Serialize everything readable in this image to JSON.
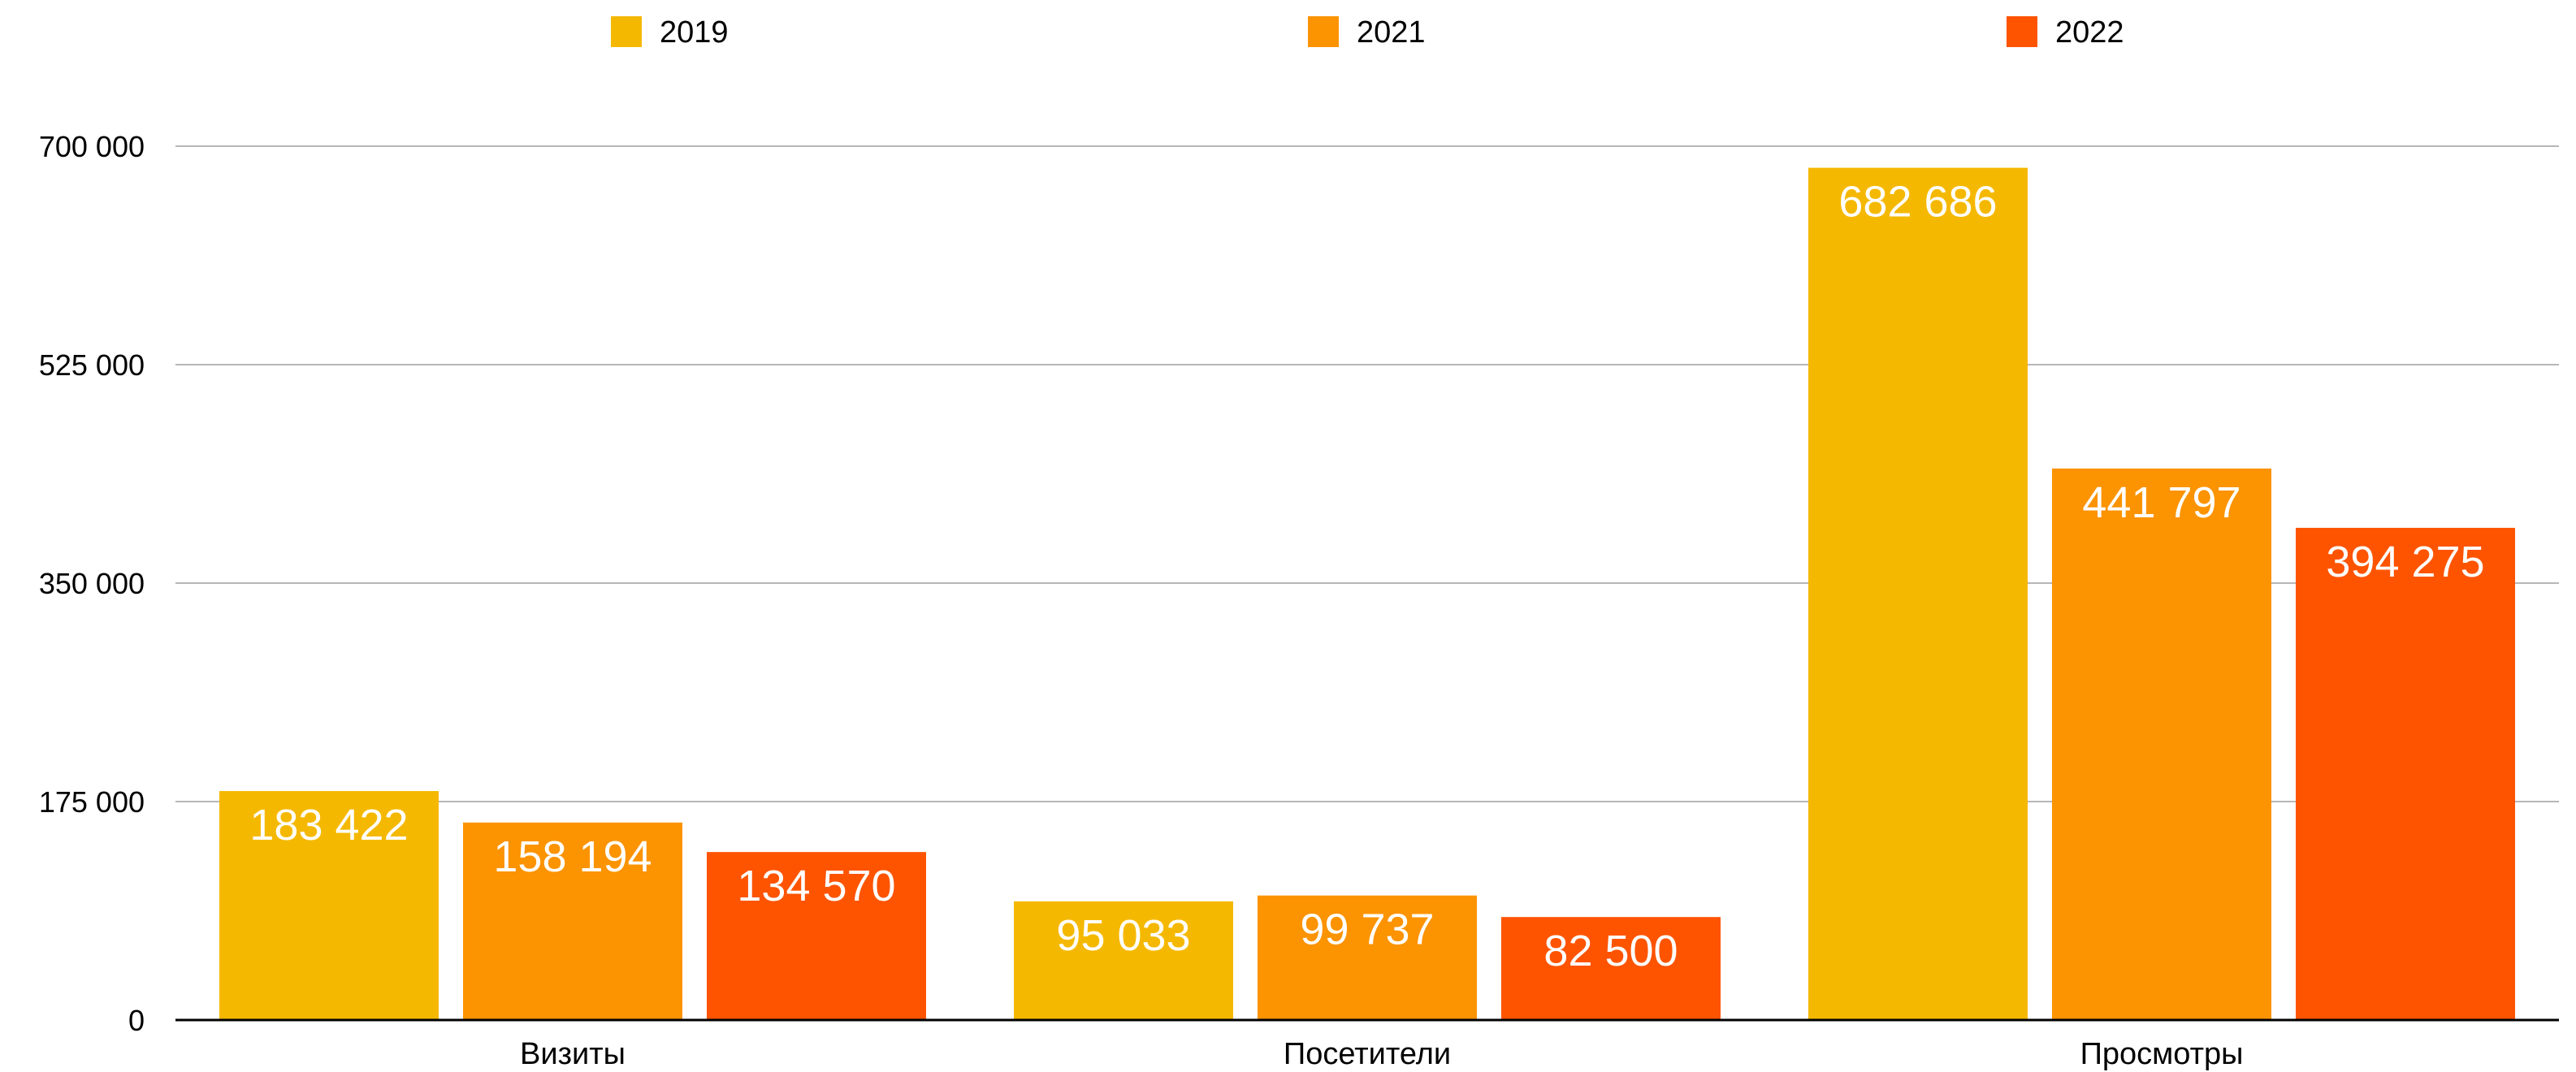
{
  "chart_data": {
    "type": "bar",
    "categories": [
      "Визиты",
      "Посетители",
      "Просмотры"
    ],
    "series": [
      {
        "name": "2019",
        "color": "#f5b800",
        "values": [
          183422,
          95033,
          682686
        ],
        "value_labels": [
          "183 422",
          "95 033",
          "682 686"
        ]
      },
      {
        "name": "2021",
        "color": "#fc9300",
        "values": [
          158194,
          99737,
          441797
        ],
        "value_labels": [
          "158 194",
          "99 737",
          "441 797"
        ]
      },
      {
        "name": "2022",
        "color": "#fe5400",
        "values": [
          134570,
          82500,
          394275
        ],
        "value_labels": [
          "134 570",
          "82 500",
          "394 275"
        ]
      }
    ],
    "y_ticks": [
      0,
      175000,
      350000,
      525000,
      700000
    ],
    "y_tick_labels": [
      "0",
      "175 000",
      "350 000",
      "525 000",
      "700 000"
    ],
    "ylim": [
      0,
      700000
    ],
    "grid": true,
    "legend_position": "top"
  }
}
